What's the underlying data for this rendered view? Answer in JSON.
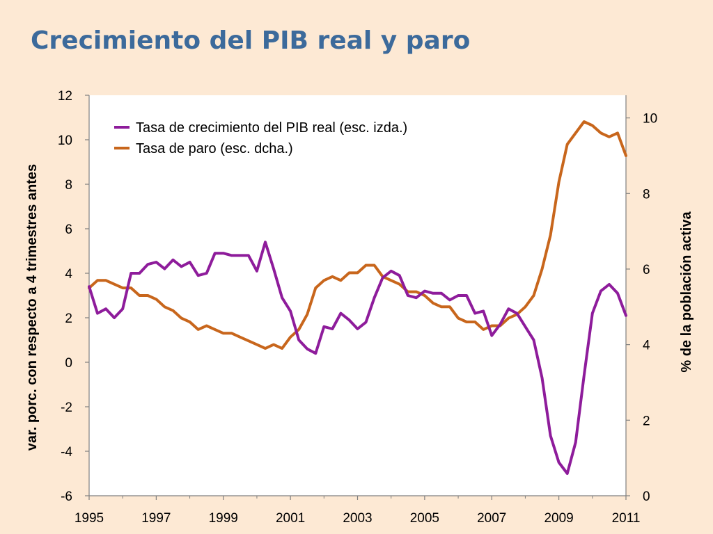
{
  "slide": {
    "title": "Crecimiento del PIB real y paro"
  },
  "colors": {
    "background": "#fde9d4",
    "title": "#3c6a9b",
    "gdp": "#8e1c9b",
    "unemployment": "#c8661c",
    "plot_bg": "#ffffff"
  },
  "chart_data": {
    "type": "line",
    "title": "",
    "xlabel": "",
    "ylabel_left": "var. porc. con respecto a 4 trimestres antes",
    "ylabel_right": "% de la población activa",
    "xlim": [
      1995,
      2011
    ],
    "ylim_left": [
      -6,
      12
    ],
    "ylim_right": [
      0,
      10.6
    ],
    "x_ticks": [
      "1995",
      "1997",
      "1999",
      "2001",
      "2003",
      "2005",
      "2007",
      "2009",
      "2011"
    ],
    "y_ticks_left": [
      "-6",
      "-4",
      "-2",
      "0",
      "2",
      "4",
      "6",
      "8",
      "10",
      "12"
    ],
    "y_ticks_right": [
      "0",
      "2",
      "4",
      "6",
      "8",
      "10"
    ],
    "legend_position": "top-left",
    "series": [
      {
        "name": "Tasa de crecimiento del PIB real (esc. izda.)",
        "axis": "left",
        "x": [
          1995.0,
          1995.25,
          1995.5,
          1995.75,
          1996.0,
          1996.25,
          1996.5,
          1996.75,
          1997.0,
          1997.25,
          1997.5,
          1997.75,
          1998.0,
          1998.25,
          1998.5,
          1998.75,
          1999.0,
          1999.25,
          1999.5,
          1999.75,
          2000.0,
          2000.25,
          2000.5,
          2000.75,
          2001.0,
          2001.25,
          2001.5,
          2001.75,
          2002.0,
          2002.25,
          2002.5,
          2002.75,
          2003.0,
          2003.25,
          2003.5,
          2003.75,
          2004.0,
          2004.25,
          2004.5,
          2004.75,
          2005.0,
          2005.25,
          2005.5,
          2005.75,
          2006.0,
          2006.25,
          2006.5,
          2006.75,
          2007.0,
          2007.25,
          2007.5,
          2007.75,
          2008.0,
          2008.25,
          2008.5,
          2008.75,
          2009.0,
          2009.25,
          2009.5,
          2009.75,
          2010.0,
          2010.25,
          2010.5,
          2010.75,
          2011.0
        ],
        "values": [
          3.4,
          2.2,
          2.4,
          2.0,
          2.4,
          4.0,
          4.0,
          4.4,
          4.5,
          4.2,
          4.6,
          4.3,
          4.5,
          3.9,
          4.0,
          4.9,
          4.9,
          4.8,
          4.8,
          4.8,
          4.1,
          5.4,
          4.2,
          2.9,
          2.3,
          1.0,
          0.6,
          0.4,
          1.6,
          1.5,
          2.2,
          1.9,
          1.5,
          1.8,
          2.9,
          3.8,
          4.1,
          3.9,
          3.0,
          2.9,
          3.2,
          3.1,
          3.1,
          2.8,
          3.0,
          3.0,
          2.2,
          2.3,
          1.2,
          1.7,
          2.4,
          2.2,
          1.6,
          1.0,
          -0.7,
          -3.3,
          -4.5,
          -5.0,
          -3.6,
          -0.6,
          2.2,
          3.2,
          3.5,
          3.1,
          2.1
        ]
      },
      {
        "name": "Tasa de paro (esc. dcha.)",
        "axis": "right",
        "x": [
          1995.0,
          1995.25,
          1995.5,
          1995.75,
          1996.0,
          1996.25,
          1996.5,
          1996.75,
          1997.0,
          1997.25,
          1997.5,
          1997.75,
          1998.0,
          1998.25,
          1998.5,
          1998.75,
          1999.0,
          1999.25,
          1999.5,
          1999.75,
          2000.0,
          2000.25,
          2000.5,
          2000.75,
          2001.0,
          2001.25,
          2001.5,
          2001.75,
          2002.0,
          2002.25,
          2002.5,
          2002.75,
          2003.0,
          2003.25,
          2003.5,
          2003.75,
          2004.0,
          2004.25,
          2004.5,
          2004.75,
          2005.0,
          2005.25,
          2005.5,
          2005.75,
          2006.0,
          2006.25,
          2006.5,
          2006.75,
          2007.0,
          2007.25,
          2007.5,
          2007.75,
          2008.0,
          2008.25,
          2008.5,
          2008.75,
          2009.0,
          2009.25,
          2009.5,
          2009.75,
          2010.0,
          2010.25,
          2010.5,
          2010.75,
          2011.0
        ],
        "values": [
          5.5,
          5.7,
          5.7,
          5.6,
          5.5,
          5.5,
          5.3,
          5.3,
          5.2,
          5.0,
          4.9,
          4.7,
          4.6,
          4.4,
          4.5,
          4.4,
          4.3,
          4.3,
          4.2,
          4.1,
          4.0,
          3.9,
          4.0,
          3.9,
          4.2,
          4.4,
          4.8,
          5.5,
          5.7,
          5.8,
          5.7,
          5.9,
          5.9,
          6.1,
          6.1,
          5.8,
          5.7,
          5.6,
          5.4,
          5.4,
          5.3,
          5.1,
          5.0,
          5.0,
          4.7,
          4.6,
          4.6,
          4.4,
          4.5,
          4.5,
          4.7,
          4.8,
          5.0,
          5.3,
          6.0,
          6.9,
          8.3,
          9.3,
          9.6,
          9.9,
          9.8,
          9.6,
          9.5,
          9.6,
          9.0
        ]
      }
    ]
  }
}
